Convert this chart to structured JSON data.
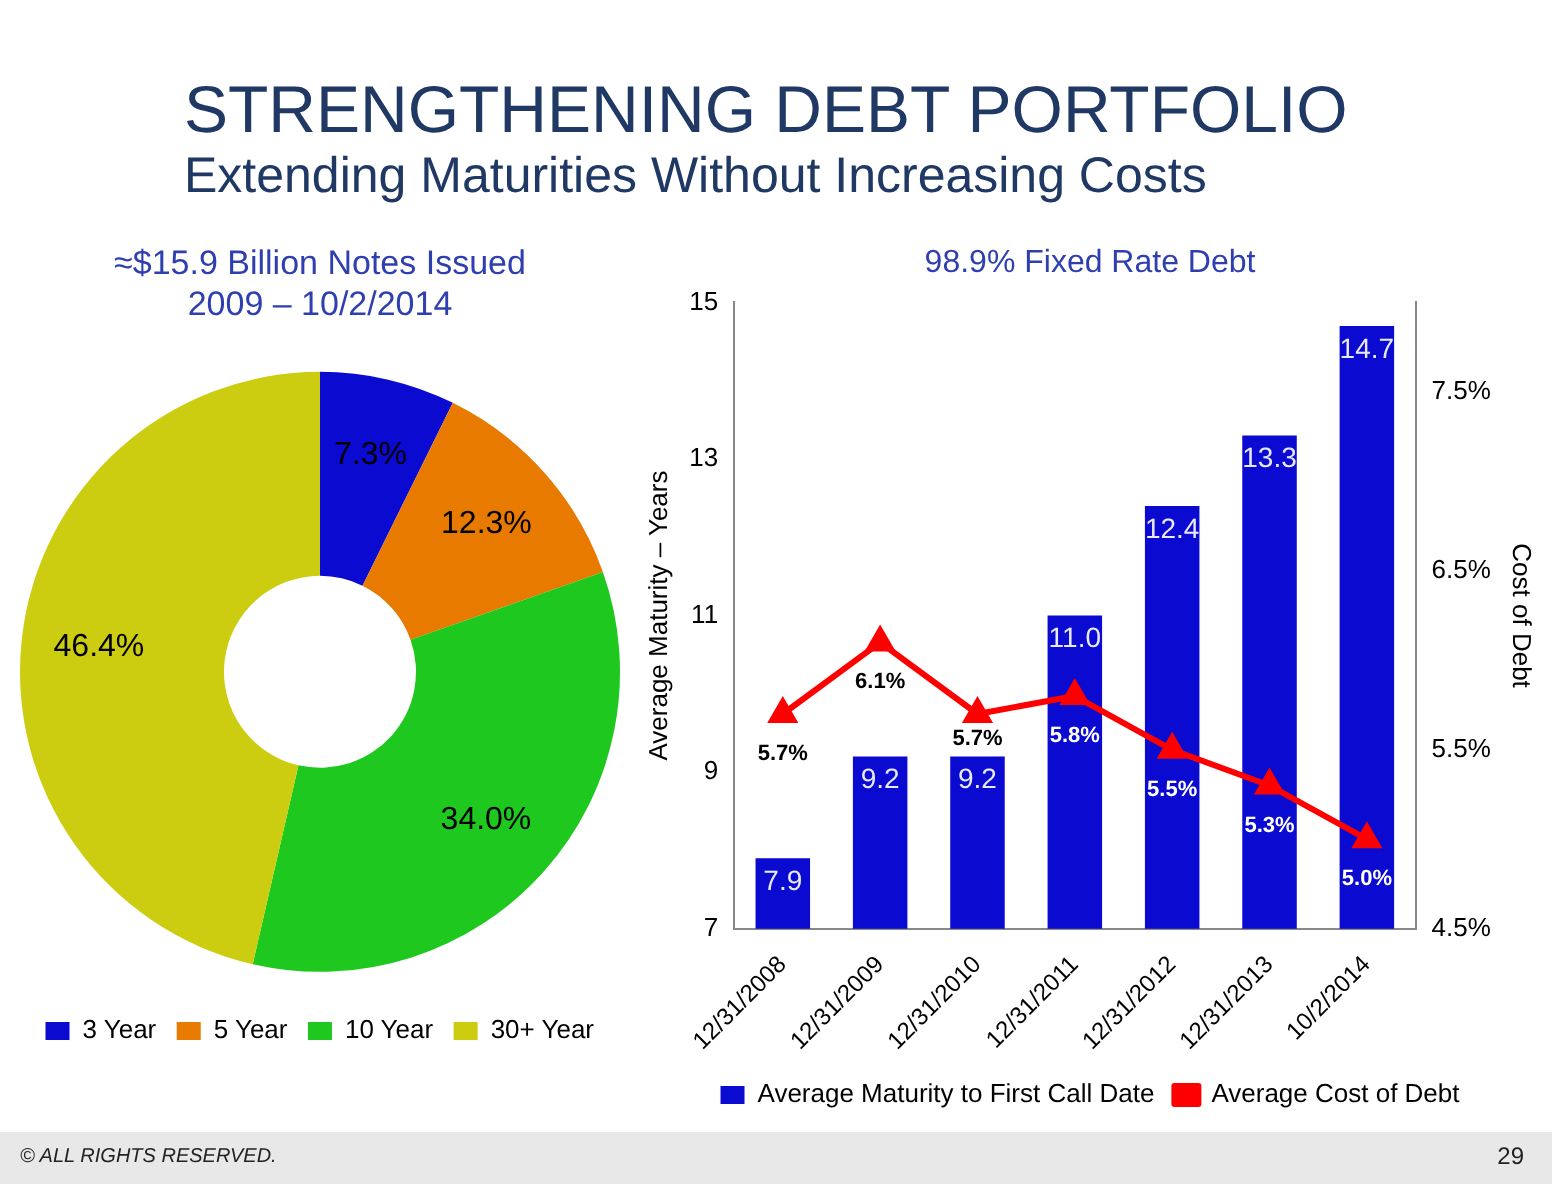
{
  "chart_data": [
    {
      "type": "other",
      "title": "STRENGTHENING DEBT PORTFOLIO",
      "subtitle": "Extending Maturities Without Increasing Costs",
      "annotations": [
        "© ALL RIGHTS RESERVED.",
        "29"
      ]
    },
    {
      "type": "donut",
      "title": "≈$15.9 Billion Notes Issued\n2009 – 10/2/2014",
      "categories": [
        "3 Year",
        "5 Year",
        "10 Year",
        "30+ Year"
      ],
      "values": [
        7.3,
        12.3,
        34.0,
        46.4
      ],
      "colors": [
        "#0a0ad0",
        "#e87a00",
        "#1ec81e",
        "#cccc10"
      ],
      "value_labels": [
        "7.3%",
        "12.3%",
        "34.0%",
        "46.4%"
      ],
      "legend": "bottom"
    },
    {
      "type": "bar",
      "title": "98.9% Fixed Rate Debt",
      "ylabel": "Average Maturity – Years",
      "y2label": "Cost of Debt",
      "categories": [
        "12/31/2008",
        "12/31/2009",
        "12/31/2010",
        "12/31/2011",
        "12/31/2012",
        "12/31/2013",
        "10/2/2014"
      ],
      "series": [
        {
          "name": "Average Maturity to First Call Date",
          "type": "bar",
          "color": "#0a0ad0",
          "values": [
            7.9,
            9.2,
            9.2,
            11.0,
            12.4,
            13.3,
            14.7
          ],
          "value_labels": [
            "7.9",
            "9.2",
            "9.2",
            "11.0",
            "12.4",
            "13.3",
            "14.7"
          ]
        },
        {
          "name": "Average Cost of Debt",
          "type": "line",
          "axis": "y2",
          "color": "#ff0000",
          "marker": "triangle",
          "values": [
            5.7,
            6.1,
            5.7,
            5.8,
            5.5,
            5.3,
            5.0
          ],
          "value_labels": [
            "5.7%",
            "6.1%",
            "5.7%",
            "5.8%",
            "5.5%",
            "5.3%",
            "5.0%"
          ]
        }
      ],
      "ylim": [
        7,
        15
      ],
      "yticks": [
        7,
        9,
        11,
        13,
        15
      ],
      "y2lim": [
        4.5,
        8.0
      ],
      "y2ticks": [
        {
          "value": 4.5,
          "label": "4.5%"
        },
        {
          "value": 5.5,
          "label": "5.5%"
        },
        {
          "value": 6.5,
          "label": "6.5%"
        },
        {
          "value": 7.5,
          "label": "7.5%"
        }
      ],
      "grid": false,
      "legend": "bottom"
    }
  ]
}
